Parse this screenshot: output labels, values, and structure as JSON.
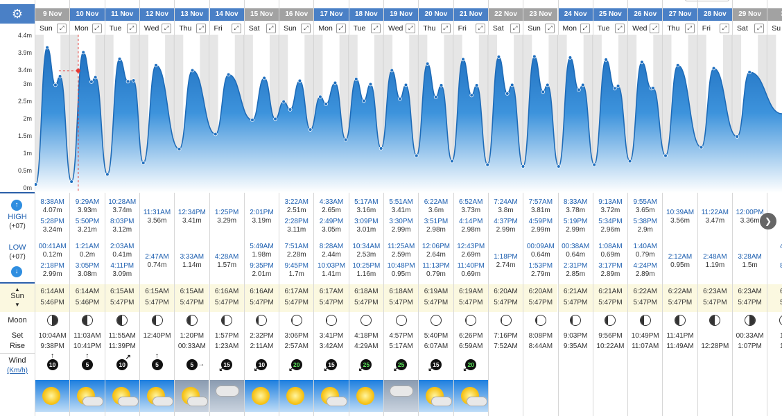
{
  "toolbar": {
    "settings_icon": "gear-icon",
    "expand_icon": "expand-arrows-icon"
  },
  "axis": {
    "ticks": [
      "4.4m",
      "3.9m",
      "3.4m",
      "3m",
      "2.5m",
      "2m",
      "1.5m",
      "1m",
      "0.5m",
      "0m"
    ],
    "range": [
      0,
      4.4
    ],
    "unit": "m"
  },
  "row_labels": {
    "high": "HIGH",
    "high_tz": "(+07)",
    "low": "LOW",
    "low_tz": "(+07)",
    "sun": "Sun",
    "moon": "Moon",
    "set": "Set",
    "rise": "Rise",
    "wind": "Wind",
    "wind_unit": "(Km/h)"
  },
  "colors": {
    "header": "#4a80c6",
    "weekend_header": "#a2a2a2",
    "tide_fill": "#2b83d4",
    "sun_row_bg": "#fbf8e0",
    "wind_green": "#5ef05e"
  },
  "days": [
    {
      "date": "9 Nov",
      "wd": "Sun",
      "hi": [
        [
          "8:38AM",
          "4.07m"
        ],
        [
          "5:28PM",
          "3.24m"
        ]
      ],
      "lo": [
        [
          "00:41AM",
          "0.12m"
        ],
        [
          "2:18PM",
          "2.99m"
        ]
      ],
      "sunrise": "6:14AM",
      "sunset": "5:46PM",
      "moon": 0.55,
      "mset": "10:04AM",
      "mrise": "9:38PM",
      "wind": "10",
      "dir": "N",
      "wx": "sun"
    },
    {
      "date": "10 Nov",
      "wd": "Mon",
      "hi": [
        [
          "9:29AM",
          "3.93m"
        ],
        [
          "5:50PM",
          "3.21m"
        ]
      ],
      "lo": [
        [
          "1:21AM",
          "0.2m"
        ],
        [
          "3:05PM",
          "3.08m"
        ]
      ],
      "sunrise": "6:14AM",
      "sunset": "5:46PM",
      "moon": 0.5,
      "mset": "11:03AM",
      "mrise": "10:41PM",
      "wind": "5",
      "dir": "N",
      "wx": "suncloud"
    },
    {
      "date": "11 Nov",
      "wd": "Tue",
      "hi": [
        [
          "10:28AM",
          "3.74m"
        ],
        [
          "8:03PM",
          "3.12m"
        ]
      ],
      "lo": [
        [
          "2:03AM",
          "0.41m"
        ],
        [
          "4:11PM",
          "3.09m"
        ]
      ],
      "sunrise": "6:15AM",
      "sunset": "5:47PM",
      "moon": 0.45,
      "mset": "11:55AM",
      "mrise": "11:39PM",
      "wind": "10",
      "dir": "NE",
      "wx": "suncloud"
    },
    {
      "date": "12 Nov",
      "wd": "Wed",
      "hi": [
        [
          "11:31AM",
          "3.56m"
        ]
      ],
      "lo": [
        [
          "2:47AM",
          "0.74m"
        ]
      ],
      "sunrise": "6:15AM",
      "sunset": "5:47PM",
      "moon": 0.4,
      "mset": "12:40PM",
      "mrise": "",
      "wind": "5",
      "dir": "N",
      "wx": "suncloud"
    },
    {
      "date": "13 Nov",
      "wd": "Thu",
      "hi": [
        [
          "12:34PM",
          "3.41m"
        ]
      ],
      "lo": [
        [
          "3:33AM",
          "1.14m"
        ]
      ],
      "sunrise": "6:15AM",
      "sunset": "5:47PM",
      "moon": 0.35,
      "mset": "1:20PM",
      "mrise": "00:33AM",
      "wind": "5",
      "dir": "E",
      "wx": "storm"
    },
    {
      "date": "14 Nov",
      "wd": "Fri",
      "hi": [
        [
          "1:25PM",
          "3.29m"
        ]
      ],
      "lo": [
        [
          "4:28AM",
          "1.57m"
        ]
      ],
      "sunrise": "6:16AM",
      "sunset": "5:47PM",
      "moon": 0.28,
      "mset": "1:57PM",
      "mrise": "1:23AM",
      "wind": "15",
      "dir": "SW",
      "wx": "rain"
    },
    {
      "date": "15 Nov",
      "wd": "Sat",
      "hi": [
        [
          "2:01PM",
          "3.19m"
        ]
      ],
      "lo": [
        [
          "5:49AM",
          "1.98m"
        ],
        [
          "9:35PM",
          "2.01m"
        ]
      ],
      "sunrise": "6:16AM",
      "sunset": "5:47PM",
      "moon": 0.2,
      "mset": "2:32PM",
      "mrise": "2:11AM",
      "wind": "10",
      "dir": "SW",
      "wx": "sun"
    },
    {
      "date": "16 Nov",
      "wd": "Sun",
      "hi": [
        [
          "3:22AM",
          "2.51m"
        ],
        [
          "2:28PM",
          "3.11m"
        ]
      ],
      "lo": [
        [
          "7:51AM",
          "2.28m"
        ],
        [
          "9:45PM",
          "1.7m"
        ]
      ],
      "sunrise": "6:17AM",
      "sunset": "5:47PM",
      "moon": 0.1,
      "mset": "3:06PM",
      "mrise": "2:57AM",
      "wind": "20",
      "dir": "SW",
      "wx": "sun"
    },
    {
      "date": "17 Nov",
      "wd": "Mon",
      "hi": [
        [
          "4:33AM",
          "2.65m"
        ],
        [
          "2:49PM",
          "3.05m"
        ]
      ],
      "lo": [
        [
          "8:28AM",
          "2.44m"
        ],
        [
          "10:03PM",
          "1.41m"
        ]
      ],
      "sunrise": "6:17AM",
      "sunset": "5:47PM",
      "moon": 0.05,
      "mset": "3:41PM",
      "mrise": "3:42AM",
      "wind": "15",
      "dir": "SW",
      "wx": "suncloud"
    },
    {
      "date": "18 Nov",
      "wd": "Tue",
      "hi": [
        [
          "5:17AM",
          "3.16m"
        ],
        [
          "3:09PM",
          "3.01m"
        ]
      ],
      "lo": [
        [
          "10:34AM",
          "2.53m"
        ],
        [
          "10:25PM",
          "1.16m"
        ]
      ],
      "sunrise": "6:18AM",
      "sunset": "5:47PM",
      "moon": 0.0,
      "mset": "4:18PM",
      "mrise": "4:29AM",
      "wind": "25",
      "dir": "SW",
      "wx": "sun"
    },
    {
      "date": "19 Nov",
      "wd": "Wed",
      "hi": [
        [
          "5:51AM",
          "3.41m"
        ],
        [
          "3:30PM",
          "2.99m"
        ]
      ],
      "lo": [
        [
          "11:25AM",
          "2.59m"
        ],
        [
          "10:48PM",
          "0.95m"
        ]
      ],
      "sunrise": "6:18AM",
      "sunset": "5:47PM",
      "moon": 0.0,
      "mset": "4:57PM",
      "mrise": "5:17AM",
      "wind": "25",
      "dir": "SW",
      "wx": "overcast"
    },
    {
      "date": "20 Nov",
      "wd": "Thu",
      "hi": [
        [
          "6:22AM",
          "3.6m"
        ],
        [
          "3:51PM",
          "2.98m"
        ]
      ],
      "lo": [
        [
          "12:06PM",
          "2.64m"
        ],
        [
          "11:13PM",
          "0.79m"
        ]
      ],
      "sunrise": "6:19AM",
      "sunset": "5:47PM",
      "moon": 0.0,
      "mset": "5:40PM",
      "mrise": "6:07AM",
      "wind": "15",
      "dir": "SW",
      "wx": "suncloud"
    },
    {
      "date": "21 Nov",
      "wd": "Fri",
      "hi": [
        [
          "6:52AM",
          "3.73m"
        ],
        [
          "4:14PM",
          "2.98m"
        ]
      ],
      "lo": [
        [
          "12:43PM",
          "2.69m"
        ],
        [
          "11:40PM",
          "0.69m"
        ]
      ],
      "sunrise": "6:19AM",
      "sunset": "5:47PM",
      "moon": 0.05,
      "mset": "6:26PM",
      "mrise": "6:59AM",
      "wind": "20",
      "dir": "SW",
      "wx": "suncloud"
    },
    {
      "date": "22 Nov",
      "wd": "Sat",
      "hi": [
        [
          "7:24AM",
          "3.8m"
        ],
        [
          "4:37PM",
          "2.99m"
        ]
      ],
      "lo": [
        [
          "1:18PM",
          "2.74m"
        ]
      ],
      "sunrise": "6:20AM",
      "sunset": "5:47PM",
      "moon": 0.1,
      "mset": "7:16PM",
      "mrise": "7:52AM",
      "wind": "",
      "dir": "",
      "wx": ""
    },
    {
      "date": "23 Nov",
      "wd": "Sun",
      "hi": [
        [
          "7:57AM",
          "3.81m"
        ],
        [
          "4:59PM",
          "2.99m"
        ]
      ],
      "lo": [
        [
          "00:09AM",
          "0.64m"
        ],
        [
          "1:53PM",
          "2.79m"
        ]
      ],
      "sunrise": "6:20AM",
      "sunset": "5:47PM",
      "moon": 0.15,
      "mset": "8:08PM",
      "mrise": "8:44AM",
      "wind": "",
      "dir": "",
      "wx": ""
    },
    {
      "date": "24 Nov",
      "wd": "Mon",
      "hi": [
        [
          "8:33AM",
          "3.78m"
        ],
        [
          "5:19PM",
          "2.99m"
        ]
      ],
      "lo": [
        [
          "00:38AM",
          "0.64m"
        ],
        [
          "2:31PM",
          "2.85m"
        ]
      ],
      "sunrise": "6:21AM",
      "sunset": "5:47PM",
      "moon": 0.2,
      "mset": "9:03PM",
      "mrise": "9:35AM",
      "wind": "",
      "dir": "",
      "wx": ""
    },
    {
      "date": "25 Nov",
      "wd": "Tue",
      "hi": [
        [
          "9:13AM",
          "3.72m"
        ],
        [
          "5:34PM",
          "2.96m"
        ]
      ],
      "lo": [
        [
          "1:08AM",
          "0.69m"
        ],
        [
          "3:17PM",
          "2.89m"
        ]
      ],
      "sunrise": "6:21AM",
      "sunset": "5:47PM",
      "moon": 0.28,
      "mset": "9:56PM",
      "mrise": "10:22AM",
      "wind": "",
      "dir": "",
      "wx": ""
    },
    {
      "date": "26 Nov",
      "wd": "Wed",
      "hi": [
        [
          "9:55AM",
          "3.65m"
        ],
        [
          "5:38PM",
          "2.9m"
        ]
      ],
      "lo": [
        [
          "1:40AM",
          "0.79m"
        ],
        [
          "4:24PM",
          "2.89m"
        ]
      ],
      "sunrise": "6:22AM",
      "sunset": "5:47PM",
      "moon": 0.35,
      "mset": "10:49PM",
      "mrise": "11:07AM",
      "wind": "",
      "dir": "",
      "wx": ""
    },
    {
      "date": "27 Nov",
      "wd": "Thu",
      "hi": [
        [
          "10:39AM",
          "3.56m"
        ]
      ],
      "lo": [
        [
          "2:12AM",
          "0.95m"
        ]
      ],
      "sunrise": "6:22AM",
      "sunset": "5:47PM",
      "moon": 0.42,
      "mset": "11:41PM",
      "mrise": "11:49AM",
      "wind": "",
      "dir": "",
      "wx": ""
    },
    {
      "date": "28 Nov",
      "wd": "Fri",
      "hi": [
        [
          "11:22AM",
          "3.47m"
        ]
      ],
      "lo": [
        [
          "2:48AM",
          "1.19m"
        ]
      ],
      "sunrise": "6:23AM",
      "sunset": "5:47PM",
      "moon": 0.5,
      "mset": "",
      "mrise": "12:28PM",
      "wind": "",
      "dir": "",
      "wx": ""
    },
    {
      "date": "29 Nov",
      "wd": "Sat",
      "hi": [
        [
          "12:00PM",
          "3.36m"
        ]
      ],
      "lo": [
        [
          "3:28AM",
          "1.5m"
        ]
      ],
      "sunrise": "6:23AM",
      "sunset": "5:47PM",
      "moon": 0.55,
      "mset": "00:33AM",
      "mrise": "1:07PM",
      "wind": "",
      "dir": "",
      "wx": ""
    },
    {
      "date": "30",
      "wd": "Su",
      "hi": [],
      "lo": [
        [
          "4:2",
          ""
        ],
        [
          "8:1",
          ""
        ]
      ],
      "sunrise": "6:2",
      "sunset": "5:4",
      "moon": 0.6,
      "mset": "1:2",
      "mrise": "1:4",
      "wind": "",
      "dir": "",
      "wx": ""
    }
  ],
  "chart_data": {
    "type": "area",
    "ylabel": "",
    "ylim": [
      0,
      4.4
    ],
    "series": [
      {
        "x": [
          "9 Nov 00:41",
          "9 Nov 08:38",
          "9 Nov 14:18",
          "9 Nov 17:28",
          "10 Nov 01:21",
          "10 Nov 09:29",
          "10 Nov 15:05",
          "10 Nov 17:50",
          "11 Nov 02:03",
          "11 Nov 10:28",
          "11 Nov 16:11",
          "11 Nov 20:03",
          "12 Nov 02:47",
          "12 Nov 11:31",
          "13 Nov 03:33",
          "13 Nov 12:34",
          "14 Nov 04:28",
          "14 Nov 13:25",
          "15 Nov 05:49",
          "15 Nov 14:01",
          "15 Nov 21:35",
          "16 Nov 03:22",
          "16 Nov 07:51",
          "16 Nov 14:28",
          "16 Nov 21:45",
          "17 Nov 04:33",
          "17 Nov 08:28",
          "17 Nov 14:49",
          "17 Nov 22:03",
          "18 Nov 05:17",
          "18 Nov 10:34",
          "18 Nov 15:09",
          "18 Nov 22:25",
          "19 Nov 05:51",
          "19 Nov 11:25",
          "19 Nov 15:30",
          "19 Nov 22:48",
          "20 Nov 06:22",
          "20 Nov 12:06",
          "20 Nov 15:51",
          "20 Nov 23:13",
          "21 Nov 06:52",
          "21 Nov 12:43",
          "21 Nov 16:14",
          "21 Nov 23:40",
          "22 Nov 07:24",
          "22 Nov 13:18",
          "22 Nov 16:37",
          "23 Nov 00:09",
          "23 Nov 07:57",
          "23 Nov 13:53",
          "23 Nov 16:59",
          "24 Nov 00:38",
          "24 Nov 08:33",
          "24 Nov 14:31",
          "24 Nov 17:19",
          "25 Nov 01:08",
          "25 Nov 09:13",
          "25 Nov 15:17",
          "25 Nov 17:34",
          "26 Nov 01:40",
          "26 Nov 09:55",
          "26 Nov 16:24",
          "26 Nov 17:38",
          "27 Nov 02:12",
          "27 Nov 10:39",
          "28 Nov 02:48",
          "28 Nov 11:22",
          "29 Nov 03:28",
          "29 Nov 12:00"
        ],
        "values": [
          0.12,
          4.07,
          2.99,
          3.24,
          0.2,
          3.93,
          3.08,
          3.21,
          0.41,
          3.74,
          3.09,
          3.12,
          0.74,
          3.56,
          1.14,
          3.41,
          1.57,
          3.29,
          1.98,
          3.19,
          2.01,
          2.51,
          2.28,
          3.11,
          1.7,
          2.65,
          2.44,
          3.05,
          1.41,
          3.16,
          2.53,
          3.01,
          1.16,
          3.41,
          2.59,
          2.99,
          0.95,
          3.6,
          2.64,
          2.98,
          0.79,
          3.73,
          2.69,
          2.98,
          0.69,
          3.8,
          2.74,
          2.99,
          0.64,
          3.81,
          2.79,
          2.99,
          0.64,
          3.78,
          2.85,
          2.99,
          0.69,
          3.72,
          2.89,
          2.96,
          0.79,
          3.65,
          2.89,
          2.9,
          0.95,
          3.56,
          1.19,
          3.47,
          1.5,
          3.36
        ]
      }
    ],
    "current": {
      "time": "10 Nov 06:00",
      "value": 3.4
    }
  }
}
